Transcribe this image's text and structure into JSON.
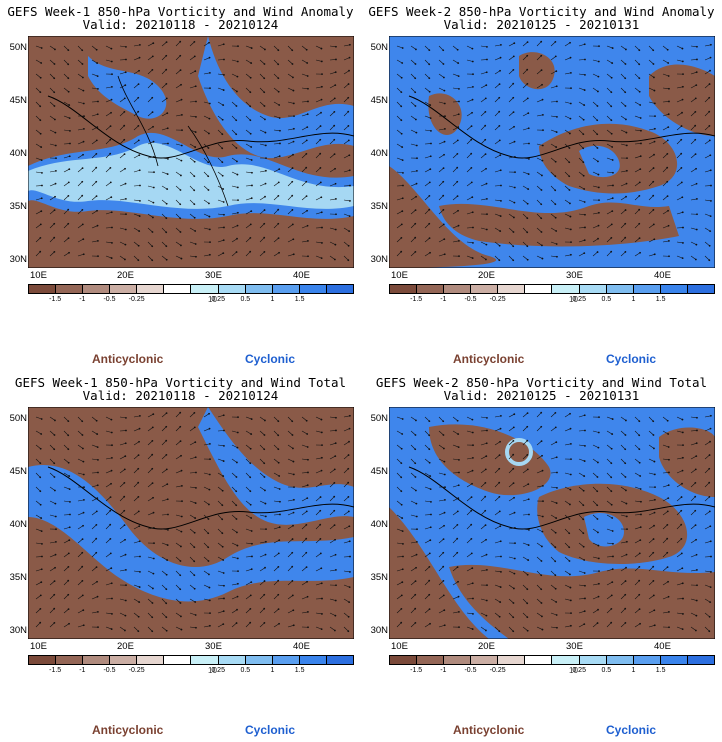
{
  "panels": [
    {
      "title": "GEFS Week-1 850-hPa Vorticity and Wind Anomaly",
      "valid": "Valid: 20210118 - 20210124"
    },
    {
      "title": "GEFS Week-2 850-hPa Vorticity and Wind Anomaly",
      "valid": "Valid: 20210125 - 20210131"
    },
    {
      "title": "GEFS Week-1 850-hPa Vorticity and Wind Total",
      "valid": "Valid: 20210118 - 20210124"
    },
    {
      "title": "GEFS Week-2 850-hPa Vorticity and Wind Total",
      "valid": "Valid: 20210125 - 20210131"
    }
  ],
  "lat_labels": [
    "50N",
    "45N",
    "40N",
    "35N",
    "30N"
  ],
  "lon_labels": [
    "10E",
    "20E",
    "30E",
    "40E"
  ],
  "colorbar": {
    "labels": [
      "-1.5",
      "-1",
      "-0.5",
      "-0.25",
      "0.25",
      "0.5",
      "1",
      "1.5"
    ],
    "unit": "10",
    "colors": [
      "#7b4a3a",
      "#946656",
      "#b08b7e",
      "#cbaea4",
      "#e6d6d0",
      "#ffffff",
      "#c9f0f7",
      "#a8dbf5",
      "#7fbdf0",
      "#5a9ff0",
      "#3a84ec",
      "#2c6fe0"
    ]
  },
  "legend": {
    "anticyclonic": "Anticyclonic",
    "cyclonic": "Cyclonic"
  },
  "colors": {
    "brown": "#8a5a48",
    "blue": "#3f86ec",
    "light_blue": "#a6d8f3"
  }
}
